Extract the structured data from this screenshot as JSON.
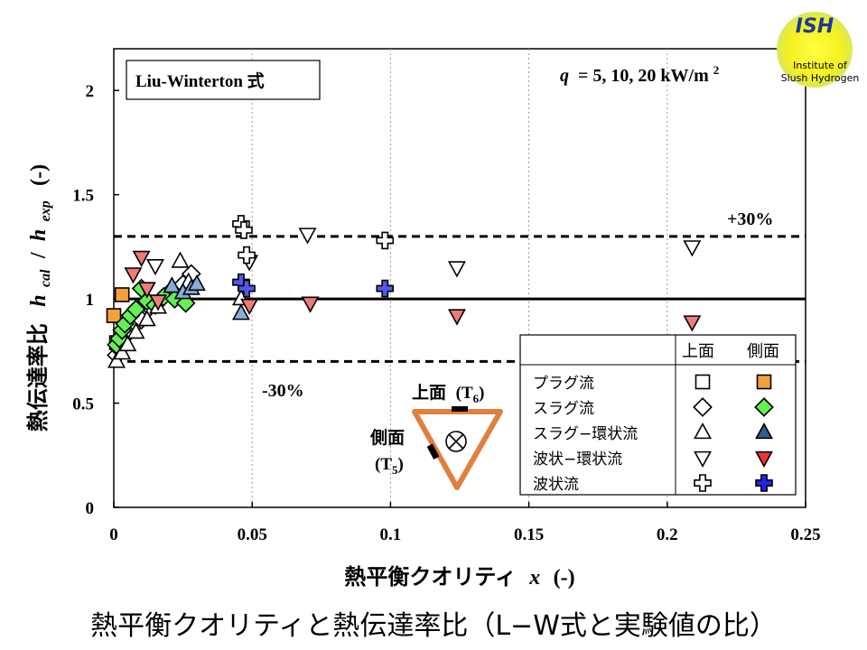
{
  "logo": {
    "abbr": "ISH",
    "line1": "Institute of",
    "line2": "Slush Hydrogen"
  },
  "caption": "熱平衡クオリティと熱伝達率比（L−W式と実験値の比）",
  "chart_data": {
    "type": "scatter",
    "model_label": "Liu-Winterton 式",
    "condition": {
      "q_symbol": "q",
      "text": "= 5, 10, 20 kW/m",
      "sup": "2"
    },
    "xlabel": {
      "jp": "熱平衡クオリティ",
      "var": "x",
      "unit": "(-)"
    },
    "ylabel": {
      "jp": "熱伝達率比",
      "num": "h",
      "num_sub": "cal",
      "slash": "/",
      "den": "h",
      "den_sub": "exp",
      "unit": "(-)"
    },
    "xlim": [
      0,
      0.25
    ],
    "ylim": [
      0,
      2.2
    ],
    "xticks": [
      "0",
      "0.05",
      "0.1",
      "0.15",
      "0.2",
      "0.25"
    ],
    "xtick_values": [
      0,
      0.05,
      0.1,
      0.15,
      0.2,
      0.25
    ],
    "yticks": [
      "0",
      "0.5",
      "1",
      "1.5",
      "2"
    ],
    "ytick_values": [
      0,
      0.5,
      1,
      1.5,
      2
    ],
    "grid": "vertical dotted",
    "reference_lines": [
      {
        "y": 1.0,
        "style": "solid",
        "label": ""
      },
      {
        "y": 1.3,
        "style": "dashed",
        "label": "+30%"
      },
      {
        "y": 0.7,
        "style": "dashed",
        "label": "-30%"
      }
    ],
    "legend": {
      "placement": "bottom-right",
      "header_top": "上面",
      "header_side": "側面",
      "rows": [
        {
          "name": "プラグ流",
          "marker": "square",
          "color": "#f4a03a"
        },
        {
          "name": "スラグ流",
          "marker": "diamond",
          "color": "#66ee55"
        },
        {
          "name": "スラグ−環状流",
          "marker": "triangle-up",
          "color": "#2e5c92"
        },
        {
          "name": "波状−環状流",
          "marker": "triangle-down",
          "color": "#ee3333"
        },
        {
          "name": "波状流",
          "marker": "cross",
          "color": "#2222ee"
        }
      ]
    },
    "inset": {
      "top_label": "上面",
      "top_sensor": "T",
      "top_sensor_sub": "6",
      "side_label": "側面",
      "side_sensor": "T",
      "side_sensor_sub": "5"
    },
    "series": [
      {
        "name": "プラグ流 上面",
        "marker": "square",
        "fill": "#ffffff",
        "x": [
          0.001,
          0.002
        ],
        "y": [
          0.79,
          0.75
        ]
      },
      {
        "name": "プラグ流 側面",
        "marker": "square",
        "fill": "#f4a03a",
        "x": [
          0.0,
          0.003,
          0.005
        ],
        "y": [
          0.92,
          1.02,
          0.86
        ]
      },
      {
        "name": "スラグ流 上面",
        "marker": "diamond",
        "fill": "#ffffff",
        "x": [
          0.001,
          0.002,
          0.003,
          0.004,
          0.006,
          0.008,
          0.01,
          0.013,
          0.02,
          0.025,
          0.028
        ],
        "y": [
          0.73,
          0.76,
          0.79,
          0.82,
          0.85,
          0.88,
          0.9,
          0.96,
          1.03,
          1.07,
          1.12
        ]
      },
      {
        "name": "スラグ流 側面",
        "marker": "diamond",
        "fill": "#66ee55",
        "x": [
          0.001,
          0.002,
          0.003,
          0.004,
          0.006,
          0.008,
          0.01,
          0.012,
          0.015,
          0.018,
          0.022,
          0.026
        ],
        "y": [
          0.78,
          0.81,
          0.85,
          0.88,
          0.92,
          0.95,
          1.05,
          0.99,
          0.97,
          1.01,
          1.0,
          0.98
        ]
      },
      {
        "name": "スラグ−環状流 上面",
        "marker": "triangle-up",
        "fill": "#ffffff",
        "x": [
          0.001,
          0.003,
          0.005,
          0.008,
          0.012,
          0.016,
          0.024,
          0.027,
          0.046
        ],
        "y": [
          0.7,
          0.74,
          0.78,
          0.84,
          0.9,
          0.96,
          1.18,
          1.08,
          1.0
        ]
      },
      {
        "name": "スラグ−環状流 側面",
        "marker": "triangle-up",
        "fill": "#87aed8",
        "x": [
          0.021,
          0.025,
          0.028,
          0.03,
          0.046
        ],
        "y": [
          1.06,
          1.03,
          1.05,
          1.07,
          0.93
        ]
      },
      {
        "name": "波状−環状流 上面",
        "marker": "triangle-down",
        "fill": "#ffffff",
        "x": [
          0.015,
          0.049,
          0.07,
          0.124,
          0.209
        ],
        "y": [
          1.16,
          1.18,
          1.31,
          1.15,
          1.25
        ]
      },
      {
        "name": "波状−環状流 側面",
        "marker": "triangle-down",
        "fill": "#f07a7a",
        "x": [
          0.007,
          0.01,
          0.012,
          0.016,
          0.049,
          0.071,
          0.124,
          0.209
        ],
        "y": [
          1.12,
          1.2,
          1.05,
          0.99,
          0.97,
          0.98,
          0.92,
          0.89
        ]
      },
      {
        "name": "波状流 上面",
        "marker": "cross",
        "fill": "#ffffff",
        "x": [
          0.046,
          0.047,
          0.048,
          0.098
        ],
        "y": [
          1.36,
          1.33,
          1.21,
          1.28
        ]
      },
      {
        "name": "波状流 側面",
        "marker": "cross",
        "fill": "#5555ee",
        "x": [
          0.046,
          0.048,
          0.098
        ],
        "y": [
          1.08,
          1.05,
          1.05
        ]
      }
    ]
  }
}
